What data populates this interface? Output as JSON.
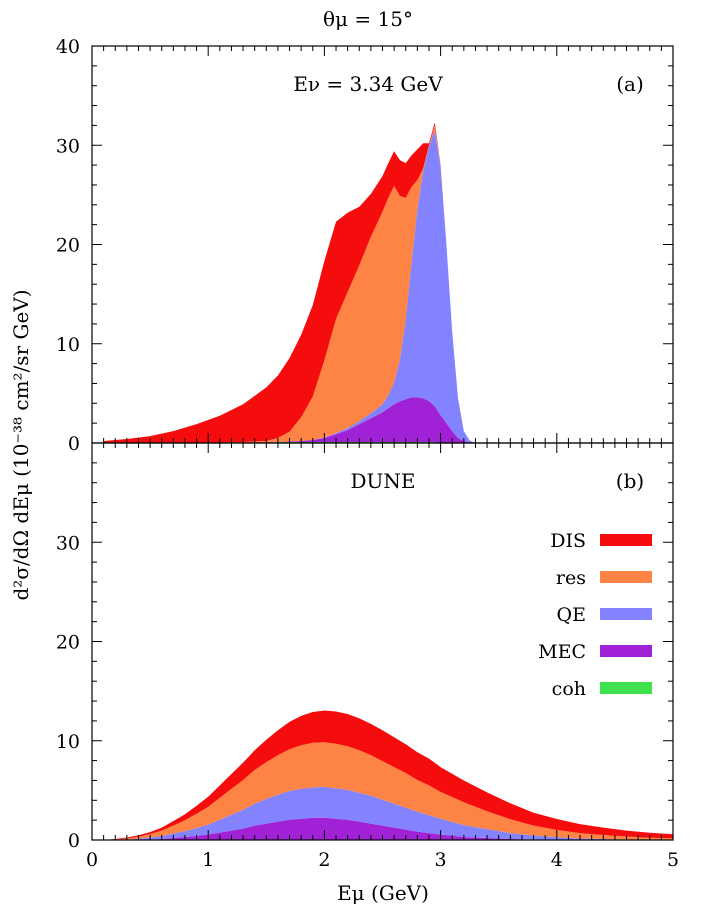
{
  "figure": {
    "title": "θμ = 15°",
    "ylabel": "d²σ/dΩ dEμ (10⁻³⁸ cm²/sr GeV)",
    "xlabel": "Eμ (GeV)"
  },
  "chart_data": [
    {
      "type": "area",
      "panel": "(a)",
      "annotation": "Eν = 3.34 GeV",
      "x_range": [
        0,
        5
      ],
      "ylim": [
        0,
        40
      ],
      "y_ticks": [
        0,
        10,
        20,
        30,
        40
      ],
      "stack_order": [
        "coh",
        "MEC",
        "QE",
        "res",
        "DIS"
      ],
      "x": [
        0.1,
        0.3,
        0.5,
        0.7,
        0.9,
        1.1,
        1.3,
        1.5,
        1.6,
        1.7,
        1.8,
        1.9,
        2.0,
        2.1,
        2.2,
        2.3,
        2.4,
        2.5,
        2.55,
        2.6,
        2.65,
        2.7,
        2.75,
        2.8,
        2.85,
        2.9,
        2.95,
        3.0,
        3.05,
        3.1,
        3.15,
        3.2,
        3.25,
        3.3
      ],
      "series": [
        {
          "name": "coh",
          "values": [
            0,
            0,
            0,
            0,
            0,
            0,
            0,
            0,
            0.1,
            0.1,
            0.1,
            0.1,
            0.1,
            0.1,
            0.1,
            0.1,
            0.1,
            0.1,
            0.1,
            0.1,
            0.1,
            0.1,
            0.1,
            0.1,
            0.1,
            0.1,
            0.1,
            0,
            0,
            0,
            0,
            0,
            0,
            0
          ]
        },
        {
          "name": "MEC",
          "values": [
            0,
            0,
            0,
            0,
            0,
            0,
            0,
            0,
            0,
            0.05,
            0.1,
            0.2,
            0.4,
            0.8,
            1.2,
            1.8,
            2.4,
            3.0,
            3.4,
            3.8,
            4.1,
            4.3,
            4.5,
            4.5,
            4.4,
            4.1,
            3.6,
            2.8,
            2.0,
            1.2,
            0.5,
            0.2,
            0.05,
            0
          ]
        },
        {
          "name": "QE",
          "values": [
            0,
            0,
            0,
            0,
            0,
            0,
            0,
            0,
            0,
            0,
            0,
            0,
            0.05,
            0.1,
            0.2,
            0.3,
            0.5,
            0.8,
            1.3,
            2.2,
            4.2,
            8.0,
            13.6,
            19.0,
            22.9,
            25.7,
            27.8,
            25.0,
            18.0,
            10.0,
            4.0,
            1.0,
            0.2,
            0
          ]
        },
        {
          "name": "res",
          "values": [
            0,
            0,
            0,
            0,
            0,
            0.05,
            0.1,
            0.2,
            0.4,
            1.0,
            2.4,
            4.4,
            7.8,
            11.5,
            13.7,
            15.7,
            17.8,
            19.4,
            19.9,
            19.8,
            16.5,
            12.3,
            7.6,
            2.9,
            0.3,
            0.1,
            0.5,
            0.1,
            0,
            0,
            0,
            0,
            0,
            0
          ]
        },
        {
          "name": "DIS",
          "values": [
            0.2,
            0.4,
            0.7,
            1.2,
            1.9,
            2.7,
            3.8,
            5.4,
            6.3,
            7.4,
            8.3,
            9.2,
            10.0,
            9.8,
            8.0,
            5.9,
            4.3,
            3.6,
            3.5,
            3.5,
            3.6,
            3.5,
            3.2,
            3.1,
            2.5,
            0.2,
            0.3,
            0.1,
            0,
            0,
            0,
            0,
            0,
            0
          ]
        }
      ]
    },
    {
      "type": "area",
      "panel": "(b)",
      "annotation": "DUNE",
      "x_range": [
        0,
        5
      ],
      "ylim": [
        0,
        40
      ],
      "y_ticks": [
        0,
        10,
        20,
        30
      ],
      "x_ticks": [
        0,
        1,
        2,
        3,
        4,
        5
      ],
      "stack_order": [
        "coh",
        "MEC",
        "QE",
        "res",
        "DIS"
      ],
      "x": [
        0.1,
        0.2,
        0.3,
        0.4,
        0.5,
        0.6,
        0.7,
        0.8,
        0.9,
        1.0,
        1.1,
        1.2,
        1.3,
        1.4,
        1.5,
        1.6,
        1.7,
        1.8,
        1.9,
        2.0,
        2.1,
        2.2,
        2.3,
        2.4,
        2.5,
        2.6,
        2.7,
        2.8,
        2.9,
        3.0,
        3.2,
        3.4,
        3.6,
        3.8,
        4.0,
        4.2,
        4.4,
        4.6,
        4.8,
        5.0
      ],
      "series": [
        {
          "name": "coh",
          "values": [
            0,
            0,
            0,
            0,
            0,
            0,
            0.05,
            0.05,
            0.05,
            0.05,
            0.05,
            0.05,
            0.05,
            0.05,
            0.05,
            0.05,
            0.05,
            0.05,
            0.05,
            0.05,
            0.05,
            0.05,
            0.05,
            0.05,
            0.05,
            0.05,
            0.05,
            0.05,
            0.05,
            0.05,
            0,
            0,
            0,
            0,
            0,
            0,
            0,
            0,
            0,
            0
          ]
        },
        {
          "name": "MEC",
          "values": [
            0,
            0,
            0,
            0.02,
            0.05,
            0.1,
            0.15,
            0.25,
            0.35,
            0.5,
            0.7,
            0.9,
            1.1,
            1.4,
            1.6,
            1.8,
            2.0,
            2.1,
            2.2,
            2.2,
            2.1,
            2.0,
            1.8,
            1.6,
            1.4,
            1.2,
            1.0,
            0.8,
            0.65,
            0.5,
            0.3,
            0.2,
            0.1,
            0.05,
            0.02,
            0,
            0,
            0,
            0,
            0
          ]
        },
        {
          "name": "QE",
          "values": [
            0,
            0,
            0.05,
            0.1,
            0.2,
            0.3,
            0.45,
            0.6,
            0.8,
            1.0,
            1.3,
            1.6,
            1.9,
            2.2,
            2.5,
            2.7,
            2.9,
            3.0,
            3.05,
            3.1,
            3.05,
            3.0,
            2.9,
            2.8,
            2.6,
            2.4,
            2.2,
            2.0,
            1.8,
            1.6,
            1.2,
            0.9,
            0.6,
            0.4,
            0.25,
            0.15,
            0.1,
            0.05,
            0.03,
            0.02
          ]
        },
        {
          "name": "res",
          "values": [
            0,
            0.05,
            0.1,
            0.2,
            0.35,
            0.55,
            0.8,
            1.1,
            1.45,
            1.8,
            2.2,
            2.6,
            3.0,
            3.4,
            3.7,
            4.0,
            4.2,
            4.4,
            4.5,
            4.5,
            4.5,
            4.4,
            4.3,
            4.1,
            3.9,
            3.7,
            3.5,
            3.2,
            3.0,
            2.7,
            2.3,
            1.8,
            1.4,
            1.0,
            0.75,
            0.55,
            0.4,
            0.3,
            0.2,
            0.15
          ]
        },
        {
          "name": "DIS",
          "values": [
            0,
            0.05,
            0.1,
            0.15,
            0.2,
            0.3,
            0.45,
            0.6,
            0.8,
            1.0,
            1.25,
            1.5,
            1.75,
            2.0,
            2.25,
            2.5,
            2.75,
            2.95,
            3.1,
            3.2,
            3.25,
            3.25,
            3.2,
            3.15,
            3.1,
            3.0,
            2.9,
            2.8,
            2.7,
            2.5,
            2.2,
            1.9,
            1.6,
            1.3,
            1.1,
            0.9,
            0.75,
            0.6,
            0.5,
            0.4
          ]
        }
      ]
    }
  ],
  "legend": {
    "placement": "right",
    "entries": [
      {
        "name": "DIS",
        "label": "DIS",
        "color": "#f50c0c"
      },
      {
        "name": "res",
        "label": "res",
        "color": "#fd8445"
      },
      {
        "name": "QE",
        "label": "QE",
        "color": "#8383ff"
      },
      {
        "name": "MEC",
        "label": "MEC",
        "color": "#a121d6"
      },
      {
        "name": "coh",
        "label": "coh",
        "color": "#3fe04d"
      }
    ]
  }
}
